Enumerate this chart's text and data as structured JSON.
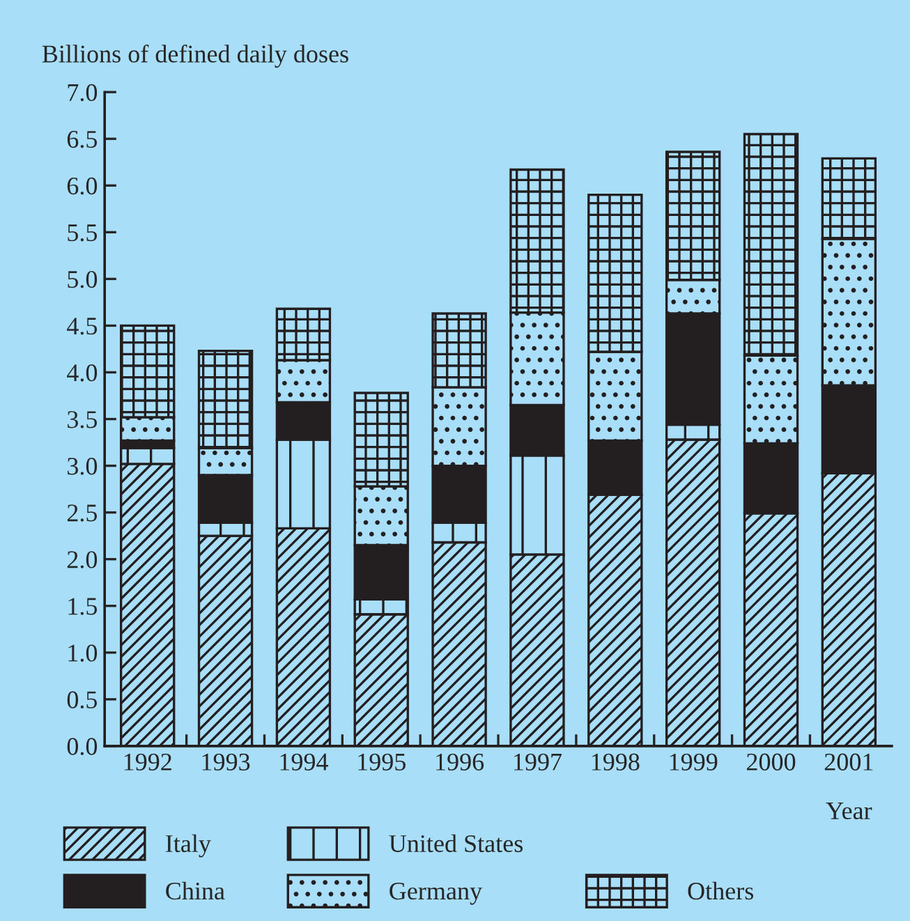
{
  "chart_data": {
    "type": "bar",
    "stacked": true,
    "ylabel": "Billions of defined daily doses",
    "xlabel": "Year",
    "categories": [
      "1992",
      "1993",
      "1994",
      "1995",
      "1996",
      "1997",
      "1998",
      "1999",
      "2000",
      "2001"
    ],
    "series": [
      {
        "name": "Italy",
        "color": "#231f20",
        "values": [
          3.02,
          2.25,
          2.33,
          1.41,
          2.18,
          2.05,
          2.69,
          3.28,
          2.49,
          2.92
        ]
      },
      {
        "name": "United States",
        "color": "#231f20",
        "values": [
          0.17,
          0.14,
          0.95,
          0.16,
          0.21,
          1.06,
          0,
          0.16,
          0,
          0
        ]
      },
      {
        "name": "China",
        "color": "#231f20",
        "values": [
          0.08,
          0.51,
          0.4,
          0.58,
          0.61,
          0.54,
          0.58,
          1.19,
          0.75,
          0.94
        ]
      },
      {
        "name": "Germany",
        "color": "#231f20",
        "values": [
          0.25,
          0.29,
          0.45,
          0.63,
          0.84,
          0.99,
          0.95,
          0.36,
          0.94,
          1.57
        ]
      },
      {
        "name": "Others",
        "color": "#231f20",
        "values": [
          0.98,
          1.04,
          0.55,
          1.0,
          0.79,
          1.53,
          1.68,
          1.37,
          2.37,
          0.86
        ]
      }
    ],
    "ylim": [
      0,
      7
    ],
    "yticks": [
      {
        "value": 0,
        "label": "0.0"
      },
      0.5,
      {
        "value": 1,
        "label": "1.0"
      },
      1.5,
      {
        "value": 2,
        "label": "2.0"
      },
      2.5,
      {
        "value": 3,
        "label": "3.0"
      },
      3.5,
      {
        "value": 4,
        "label": "4.0"
      },
      4.5,
      {
        "value": 5,
        "label": "5.0"
      },
      5.5,
      {
        "value": 6,
        "label": "6.0"
      },
      6.5,
      {
        "value": 7,
        "label": "7.0"
      }
    ],
    "legend": "bottom",
    "grid": false
  }
}
